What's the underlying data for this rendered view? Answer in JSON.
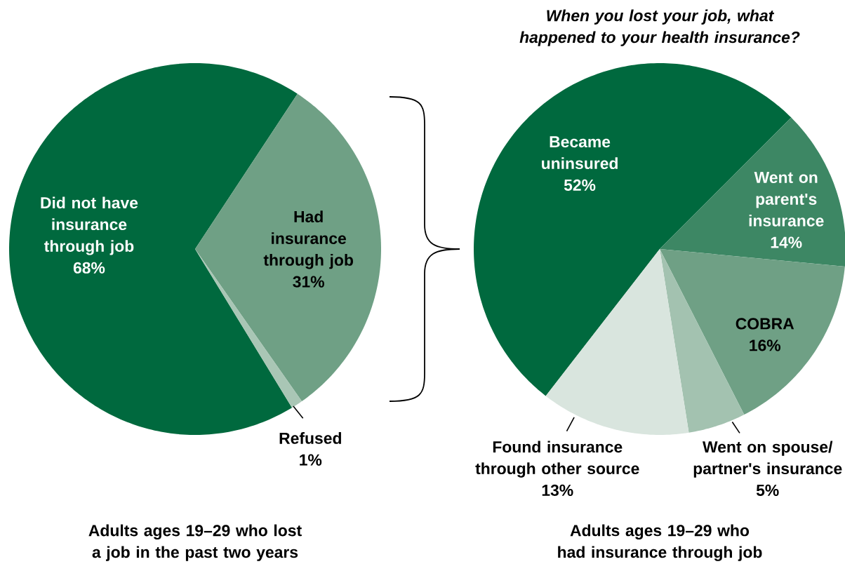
{
  "chart_data": [
    {
      "type": "pie",
      "categories": [
        "Did not have insurance through job",
        "Had insurance through job",
        "Refused"
      ],
      "values": [
        68,
        31,
        1
      ],
      "value_labels": [
        "68%",
        "31%",
        "1%"
      ],
      "colors": [
        "#00693e",
        "#6fa085",
        "#a9c6b5"
      ],
      "annotations": [
        "Adults ages 19–29 who lost a job in the past two years"
      ]
    },
    {
      "type": "pie",
      "title": "When you lost your job, what happened to your health insurance?",
      "categories": [
        "Became uninsured",
        "Went on parent's insurance",
        "COBRA",
        "Went on spouse/ partner's insurance",
        "Found insurance through other source"
      ],
      "values": [
        52,
        14,
        16,
        5,
        13
      ],
      "value_labels": [
        "52%",
        "14%",
        "16%",
        "5%",
        "13%"
      ],
      "colors": [
        "#00693e",
        "#3d8764",
        "#6fa085",
        "#a3c2b0",
        "#d9e5de"
      ],
      "annotations": [
        "Adults ages 19–29 who had insurance through job"
      ]
    }
  ]
}
